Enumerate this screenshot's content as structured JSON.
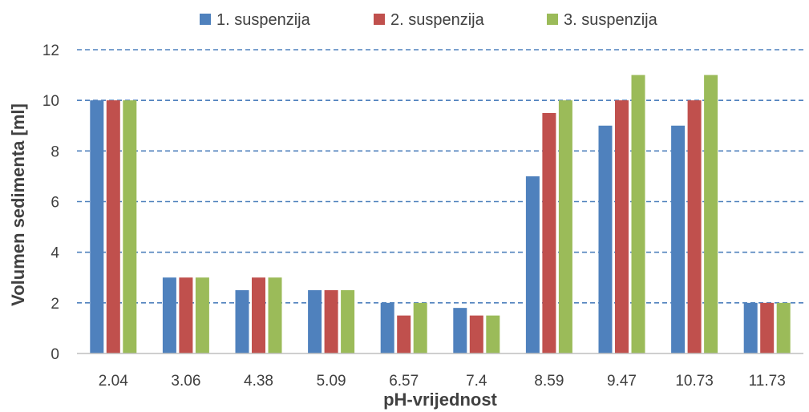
{
  "chart_data": {
    "type": "bar",
    "title": "",
    "xlabel": "pH-vrijednost",
    "ylabel": "Volumen sedimenta [ml]",
    "categories": [
      "2.04",
      "3.06",
      "4.38",
      "5.09",
      "6.57",
      "7.4",
      "8.59",
      "9.47",
      "10.73",
      "11.73"
    ],
    "series": [
      {
        "name": "1. suspenzija",
        "color": "#4f81bd",
        "values": [
          10,
          3,
          2.5,
          2.5,
          2,
          1.8,
          7,
          9,
          9,
          2
        ]
      },
      {
        "name": "2. suspenzija",
        "color": "#c0504d",
        "values": [
          10,
          3,
          3,
          2.5,
          1.5,
          1.5,
          9.5,
          10,
          10,
          2
        ]
      },
      {
        "name": "3. suspenzija",
        "color": "#9bbb59",
        "values": [
          10,
          3,
          3,
          2.5,
          2,
          1.5,
          10,
          11,
          11,
          2
        ]
      }
    ],
    "ylim": [
      0,
      12
    ],
    "yticks": [
      "0",
      "2",
      "4",
      "6",
      "8",
      "10",
      "12"
    ],
    "grid": true,
    "grid_style": "dashed",
    "grid_color": "#4f81bd",
    "legend_position": "top"
  }
}
